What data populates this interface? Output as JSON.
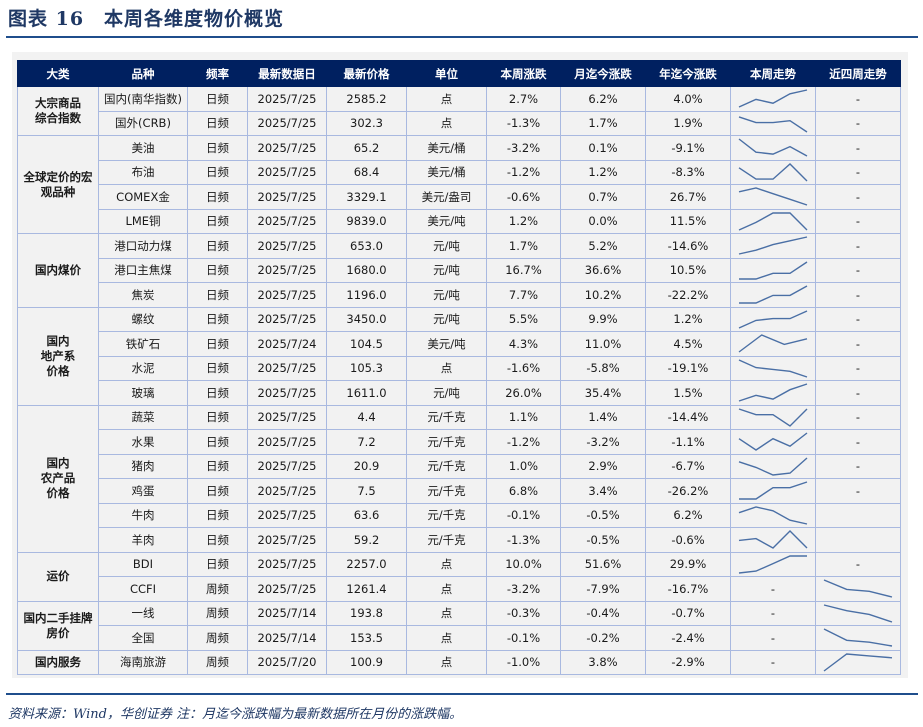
{
  "title": "图表 16　本周各维度物价概览",
  "columns": [
    "大类",
    "品种",
    "频率",
    "最新数据日",
    "最新价格",
    "单位",
    "本周涨跌",
    "月迄今涨跌",
    "年迄今涨跌",
    "本周走势",
    "近四周走势"
  ],
  "colors": {
    "header_bg": "#002060",
    "positive_bg": "#ffc7ce",
    "positive_text": "#c00000",
    "negative_bg": "#c6efce",
    "negative_text": "#006100",
    "sparkline": "#4a6fa5",
    "border": "#a9b9e0"
  },
  "groups": [
    {
      "category": "大宗商品综合指数",
      "rows": [
        {
          "item": "国内(南华指数)",
          "freq": "日频",
          "date": "2025/7/25",
          "price": "2585.2",
          "unit": "点",
          "wk": "2.7%",
          "mtd": "6.2%",
          "ytd": "4.0%",
          "wk_trend": [
            1,
            5,
            3,
            8,
            10
          ],
          "four_wk": "-"
        },
        {
          "item": "国外(CRB)",
          "freq": "日频",
          "date": "2025/7/25",
          "price": "302.3",
          "unit": "点",
          "wk": "-1.3%",
          "mtd": "1.7%",
          "ytd": "1.9%",
          "wk_trend": [
            9,
            6,
            6,
            7,
            1
          ],
          "four_wk": "-"
        }
      ]
    },
    {
      "category": "全球定价的宏观品种",
      "rows": [
        {
          "item": "美油",
          "freq": "日频",
          "date": "2025/7/25",
          "price": "65.2",
          "unit": "美元/桶",
          "wk": "-3.2%",
          "mtd": "0.1%",
          "ytd": "-9.1%",
          "wk_trend": [
            10,
            3,
            2,
            6,
            1
          ],
          "four_wk": "-"
        },
        {
          "item": "布油",
          "freq": "日频",
          "date": "2025/7/25",
          "price": "68.4",
          "unit": "美元/桶",
          "wk": "-1.2%",
          "mtd": "1.2%",
          "ytd": "-8.3%",
          "wk_trend": [
            8,
            2,
            2,
            10,
            1
          ],
          "four_wk": "-"
        },
        {
          "item": "COMEX金",
          "freq": "日频",
          "date": "2025/7/25",
          "price": "3329.1",
          "unit": "美元/盎司",
          "wk": "-0.6%",
          "mtd": "0.7%",
          "ytd": "26.7%",
          "wk_trend": [
            8,
            10,
            7,
            4,
            1
          ],
          "four_wk": "-"
        },
        {
          "item": "LME铜",
          "freq": "日频",
          "date": "2025/7/25",
          "price": "9839.0",
          "unit": "美元/吨",
          "wk": "1.2%",
          "mtd": "0.0%",
          "ytd": "11.5%",
          "wk_trend": [
            1,
            5,
            10,
            10,
            1
          ],
          "four_wk": "-"
        }
      ]
    },
    {
      "category": "国内煤价",
      "rows": [
        {
          "item": "港口动力煤",
          "freq": "日频",
          "date": "2025/7/25",
          "price": "653.0",
          "unit": "元/吨",
          "wk": "1.7%",
          "mtd": "5.2%",
          "ytd": "-14.6%",
          "wk_trend": [
            1,
            3,
            6,
            8,
            10
          ],
          "four_wk": "-"
        },
        {
          "item": "港口主焦煤",
          "freq": "日频",
          "date": "2025/7/25",
          "price": "1680.0",
          "unit": "元/吨",
          "wk": "16.7%",
          "mtd": "36.6%",
          "ytd": "10.5%",
          "wk_trend": [
            1,
            1,
            4,
            4,
            10
          ],
          "four_wk": "-"
        },
        {
          "item": "焦炭",
          "freq": "日频",
          "date": "2025/7/25",
          "price": "1196.0",
          "unit": "元/吨",
          "wk": "7.7%",
          "mtd": "10.2%",
          "ytd": "-22.2%",
          "wk_trend": [
            1,
            1,
            5,
            5,
            10
          ],
          "four_wk": "-"
        }
      ]
    },
    {
      "category": "国内地产系价格",
      "rows": [
        {
          "item": "螺纹",
          "freq": "日频",
          "date": "2025/7/25",
          "price": "3450.0",
          "unit": "元/吨",
          "wk": "5.5%",
          "mtd": "9.9%",
          "ytd": "1.2%",
          "wk_trend": [
            1,
            5,
            6,
            6,
            10
          ],
          "four_wk": "-"
        },
        {
          "item": "铁矿石",
          "freq": "日频",
          "date": "2025/7/24",
          "price": "104.5",
          "unit": "美元/吨",
          "wk": "4.3%",
          "mtd": "11.0%",
          "ytd": "4.5%",
          "wk_trend": [
            1,
            10,
            5,
            8
          ],
          "four_wk": "-"
        },
        {
          "item": "水泥",
          "freq": "日频",
          "date": "2025/7/25",
          "price": "105.3",
          "unit": "点",
          "wk": "-1.6%",
          "mtd": "-5.8%",
          "ytd": "-19.1%",
          "wk_trend": [
            10,
            6,
            5,
            4,
            1
          ],
          "four_wk": "-"
        },
        {
          "item": "玻璃",
          "freq": "日频",
          "date": "2025/7/25",
          "price": "1611.0",
          "unit": "元/吨",
          "wk": "26.0%",
          "mtd": "35.4%",
          "ytd": "1.5%",
          "wk_trend": [
            1,
            4,
            2,
            7,
            10
          ],
          "four_wk": "-"
        }
      ]
    },
    {
      "category": "国内农产品价格",
      "rows": [
        {
          "item": "蔬菜",
          "freq": "日频",
          "date": "2025/7/25",
          "price": "4.4",
          "unit": "元/千克",
          "wk": "1.1%",
          "mtd": "1.4%",
          "ytd": "-14.4%",
          "wk_trend": [
            10,
            7,
            7,
            1,
            10
          ],
          "four_wk": "-"
        },
        {
          "item": "水果",
          "freq": "日频",
          "date": "2025/7/25",
          "price": "7.2",
          "unit": "元/千克",
          "wk": "-1.2%",
          "mtd": "-3.2%",
          "ytd": "-1.1%",
          "wk_trend": [
            7,
            1,
            7,
            3,
            10
          ],
          "four_wk": "-"
        },
        {
          "item": "猪肉",
          "freq": "日频",
          "date": "2025/7/25",
          "price": "20.9",
          "unit": "元/千克",
          "wk": "1.0%",
          "mtd": "2.9%",
          "ytd": "-6.7%",
          "wk_trend": [
            8,
            5,
            1,
            2,
            10
          ],
          "four_wk": "-"
        },
        {
          "item": "鸡蛋",
          "freq": "日频",
          "date": "2025/7/25",
          "price": "7.5",
          "unit": "元/千克",
          "wk": "6.8%",
          "mtd": "3.4%",
          "ytd": "-26.2%",
          "wk_trend": [
            1,
            1,
            7,
            7,
            10
          ],
          "four_wk": "-"
        },
        {
          "item": "牛肉",
          "freq": "日频",
          "date": "2025/7/25",
          "price": "63.6",
          "unit": "元/千克",
          "wk": "-0.1%",
          "mtd": "-0.5%",
          "ytd": "6.2%",
          "wk_trend": [
            7,
            10,
            8,
            3,
            1
          ],
          "four_wk": ""
        },
        {
          "item": "羊肉",
          "freq": "日频",
          "date": "2025/7/25",
          "price": "59.2",
          "unit": "元/千克",
          "wk": "-1.3%",
          "mtd": "-0.5%",
          "ytd": "-0.6%",
          "wk_trend": [
            5,
            6,
            1,
            10,
            1
          ],
          "four_wk": ""
        }
      ]
    },
    {
      "category": "运价",
      "rows": [
        {
          "item": "BDI",
          "freq": "日频",
          "date": "2025/7/25",
          "price": "2257.0",
          "unit": "点",
          "wk": "10.0%",
          "mtd": "51.6%",
          "ytd": "29.9%",
          "wk_trend": [
            1,
            2,
            6,
            10,
            10
          ],
          "four_wk": "-"
        },
        {
          "item": "CCFI",
          "freq": "周频",
          "date": "2025/7/25",
          "price": "1261.4",
          "unit": "点",
          "wk": "-3.2%",
          "mtd": "-7.9%",
          "ytd": "-16.7%",
          "wk_trend": "-",
          "four_wk_trend": [
            10,
            5,
            4,
            1
          ]
        }
      ]
    },
    {
      "category": "国内二手挂牌房价",
      "rows": [
        {
          "item": "一线",
          "freq": "周频",
          "date": "2025/7/14",
          "price": "193.8",
          "unit": "点",
          "wk": "-0.3%",
          "mtd": "-0.4%",
          "ytd": "-0.7%",
          "wk_trend": "-",
          "four_wk_trend": [
            10,
            7,
            5,
            1
          ]
        },
        {
          "item": "全国",
          "freq": "周频",
          "date": "2025/7/14",
          "price": "153.5",
          "unit": "点",
          "wk": "-0.1%",
          "mtd": "-0.2%",
          "ytd": "-2.4%",
          "wk_trend": "-",
          "four_wk_trend": [
            10,
            4,
            3,
            1
          ]
        }
      ]
    },
    {
      "category": "国内服务",
      "rows": [
        {
          "item": "海南旅游",
          "freq": "周频",
          "date": "2025/7/20",
          "price": "100.9",
          "unit": "点",
          "wk": "-1.0%",
          "mtd": "3.8%",
          "ytd": "-2.9%",
          "wk_trend": "-",
          "four_wk_trend": [
            1,
            10,
            9,
            8
          ]
        }
      ]
    }
  ],
  "category_display": {
    "大宗商品综合指数": [
      "大宗商品",
      "综合指数"
    ],
    "全球定价的宏观品种": [
      "全球定价的宏",
      "观品种"
    ],
    "国内煤价": [
      "国内煤价"
    ],
    "国内地产系价格": [
      "国内",
      "地产系",
      "价格"
    ],
    "国内农产品价格": [
      "国内",
      "农产品",
      "价格"
    ],
    "运价": [
      "运价"
    ],
    "国内二手挂牌房价": [
      "国内二手挂牌",
      "房价"
    ],
    "国内服务": [
      "国内服务"
    ]
  },
  "footer": {
    "source": "资料来源：Wind，华创证券 注：月迄今涨跌幅为最新数据所在月份的涨跌幅。"
  }
}
